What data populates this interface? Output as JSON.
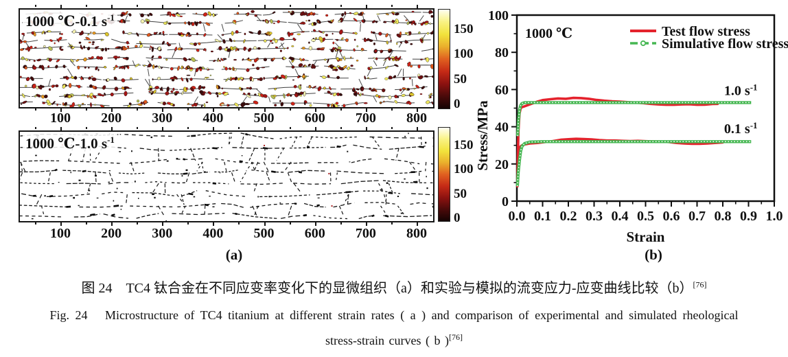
{
  "panel_a": {
    "label": "(a)",
    "panels": [
      {
        "label_base": "1000 ℃-0.1 s",
        "label_sup": "-1",
        "style": "colored-grains",
        "x_ticks": [
          100,
          200,
          300,
          400,
          500,
          600,
          700,
          800
        ],
        "colorbar_ticks": [
          150,
          100,
          50,
          0
        ]
      },
      {
        "label_base": "1000 ℃-1.0 s",
        "label_sup": "-1",
        "style": "boundary-network",
        "x_ticks": [
          100,
          200,
          300,
          400,
          500,
          600,
          700,
          800
        ],
        "colorbar_ticks": [
          150,
          100,
          50,
          0
        ]
      }
    ]
  },
  "chart_data": {
    "type": "line",
    "panel_label": "(b)",
    "annotation": "1000 ℃",
    "xlabel": "Strain",
    "ylabel": "Stress/MPa",
    "xlim": [
      0.0,
      1.0
    ],
    "ylim": [
      0,
      100
    ],
    "grid": false,
    "x_ticks": [
      "0.0",
      "0.1",
      "0.2",
      "0.3",
      "0.4",
      "0.5",
      "0.6",
      "0.7",
      "0.8",
      "0.9",
      "1.0"
    ],
    "y_ticks": [
      0,
      20,
      40,
      60,
      80,
      100
    ],
    "legend": {
      "position": "top-right",
      "entries": [
        {
          "label": "Test flow stress",
          "color": "#e4232d",
          "style": "solid"
        },
        {
          "label": "Simulative flow stress",
          "color": "#46b752",
          "style": "dash-dot-circles"
        }
      ]
    },
    "curve_labels": [
      {
        "base": "1.0 s",
        "sup": "-1",
        "x": 0.87,
        "y": 57
      },
      {
        "base": "0.1 s",
        "sup": "-1",
        "x": 0.87,
        "y": 36.5
      }
    ],
    "series": [
      {
        "name": "Test flow stress 1.0 s-1",
        "color": "#e4232d",
        "marker": "none",
        "x": [
          0.002,
          0.004,
          0.006,
          0.01,
          0.015,
          0.02,
          0.03,
          0.05,
          0.08,
          0.1,
          0.13,
          0.16,
          0.19,
          0.22,
          0.25,
          0.28,
          0.31,
          0.34,
          0.37,
          0.4,
          0.43,
          0.46,
          0.49,
          0.52,
          0.55,
          0.58,
          0.61,
          0.64,
          0.67,
          0.7,
          0.73,
          0.76,
          0.78
        ],
        "y": [
          10,
          25,
          38,
          47,
          50,
          50.5,
          51,
          52,
          53.5,
          54.3,
          54.8,
          55.2,
          55,
          55.5,
          55.4,
          55,
          54.4,
          54,
          53.7,
          53.5,
          53.2,
          53,
          52.7,
          52.3,
          52,
          51.8,
          51.8,
          52,
          52.1,
          51.8,
          51.9,
          52.2,
          52.3
        ]
      },
      {
        "name": "Simulative flow stress 1.0 s-1",
        "color": "#46b752",
        "marker": "circle",
        "x": [
          0.003,
          0.006,
          0.01,
          0.015,
          0.02,
          0.03,
          0.05,
          0.1,
          0.2,
          0.3,
          0.4,
          0.5,
          0.6,
          0.7,
          0.8,
          0.91
        ],
        "y": [
          35,
          43,
          49,
          51.5,
          52.5,
          53,
          53,
          53,
          53,
          53,
          53,
          53,
          53,
          53,
          53,
          53
        ]
      },
      {
        "name": "Test flow stress 0.1 s-1",
        "color": "#e4232d",
        "marker": "none",
        "x": [
          0.002,
          0.004,
          0.006,
          0.01,
          0.015,
          0.02,
          0.03,
          0.05,
          0.08,
          0.11,
          0.14,
          0.17,
          0.2,
          0.23,
          0.26,
          0.29,
          0.32,
          0.35,
          0.38,
          0.41,
          0.44,
          0.47,
          0.5,
          0.53,
          0.56,
          0.59,
          0.62,
          0.65,
          0.68,
          0.71,
          0.74,
          0.77,
          0.8
        ],
        "y": [
          8,
          18,
          24,
          28,
          29.5,
          30,
          30.5,
          31,
          31.3,
          31.8,
          32.3,
          33,
          33.3,
          33.5,
          33.4,
          33.2,
          32.8,
          32.6,
          32.6,
          32.4,
          32.3,
          32.4,
          32.2,
          32.1,
          32,
          31.8,
          31.3,
          31,
          30.8,
          30.8,
          31,
          31.3,
          31.6
        ]
      },
      {
        "name": "Simulative flow stress 0.1 s-1",
        "color": "#46b752",
        "marker": "circle",
        "x": [
          0.002,
          0.005,
          0.01,
          0.015,
          0.02,
          0.03,
          0.05,
          0.1,
          0.2,
          0.3,
          0.4,
          0.5,
          0.6,
          0.7,
          0.8,
          0.91
        ],
        "y": [
          8,
          15,
          22,
          27,
          29.5,
          31,
          31.8,
          32,
          32,
          32,
          32,
          32,
          32,
          32,
          32,
          32
        ]
      }
    ]
  },
  "caption": {
    "cn": "图 24　TC4 钛合金在不同应变率变化下的显微组织（a）和实验与模拟的流变应力-应变曲线比较（b）",
    "en_line1": "Fig. 24   Microstructure of TC4 titanium at different strain rates ( a ) and comparison of experimental and simulated rheological",
    "en_line2": "stress-strain curves ( b )",
    "ref": "[76]"
  },
  "colors": {
    "test_red": "#e4232d",
    "sim_green": "#46b752",
    "boundary_dark": "#2b2b2b",
    "colorbar_gradient": [
      "#fffef2",
      "#f9f283",
      "#f2e33c",
      "#eaaf2c",
      "#e06020",
      "#c52a16",
      "#8c1210",
      "#4a0a0a",
      "#140303"
    ],
    "grain_palette": [
      "#3f0a0a",
      "#6b0f10",
      "#a31515",
      "#cf2317",
      "#e0581c",
      "#e99920",
      "#ddc52c",
      "#efe85d",
      "#f6f3b0",
      "#b9c153"
    ]
  }
}
